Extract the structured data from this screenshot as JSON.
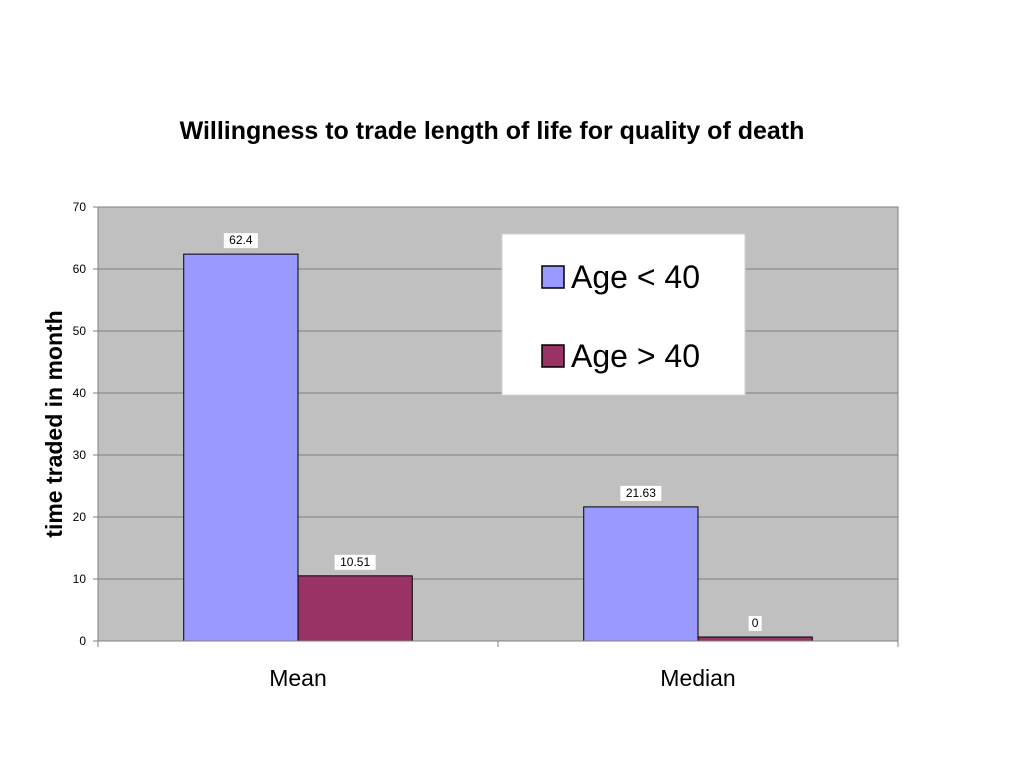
{
  "chart_data": {
    "type": "bar",
    "title": "Willingness to trade length of life for quality of death",
    "ylabel": "time traded in month",
    "xlabel": "",
    "categories": [
      "Mean",
      "Median"
    ],
    "series": [
      {
        "name": "Age < 40",
        "values": [
          62.4,
          21.63
        ],
        "labels": [
          "62.4",
          "21.63"
        ],
        "color": "#9999ff"
      },
      {
        "name": "Age > 40",
        "values": [
          10.51,
          0
        ],
        "labels": [
          "10.51",
          "0"
        ],
        "color": "#993366"
      }
    ],
    "ylim": [
      0,
      70
    ],
    "yticks": [
      0,
      10,
      20,
      30,
      40,
      50,
      60,
      70
    ],
    "grid": true,
    "legend_position": "top-right",
    "plot_background": "#c0c0c0"
  }
}
